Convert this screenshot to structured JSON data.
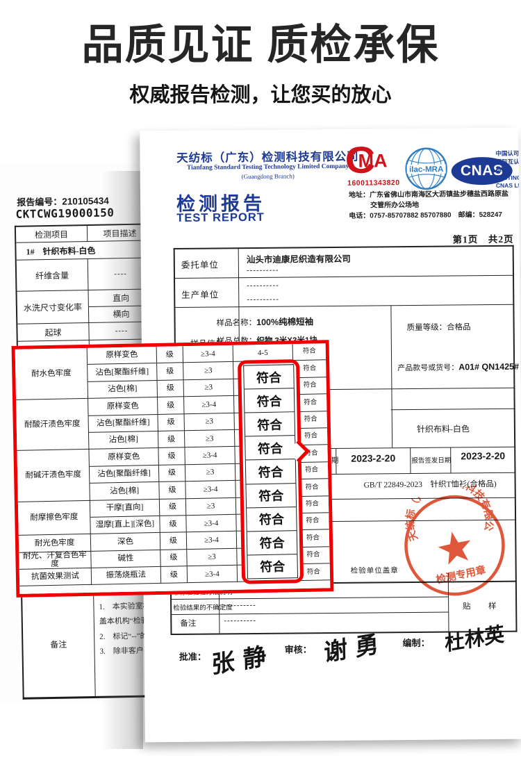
{
  "hero": {
    "title": "品质见证 质检承保",
    "subtitle": "权威报告检测，让您买的放心"
  },
  "left_doc": {
    "report_no_label": "报告编号：",
    "report_no": "210105434",
    "report_code": "CKTCWG19000150",
    "table": {
      "h1": "检测项目",
      "h2": "项目描述",
      "item_row": "1#　针织布料-白色",
      "r1": {
        "label": "纤维含量",
        "value": "----"
      },
      "r2": {
        "label": "水洗尺寸变化率",
        "a": "直向",
        "b": "横向"
      },
      "r3": {
        "label": "起球",
        "value": "----"
      },
      "r4": {
        "label": "顶破强力",
        "value": "----"
      }
    },
    "notes": {
      "label": "备注",
      "l1": "1.　本实验室根据",
      "l2": "盖本机构“检验检",
      "l3": "2.　标记“--”的测",
      "l4": "3.　除非客户要求"
    }
  },
  "right_doc": {
    "company_cn": "天纺标（广东）检测科技有限公司",
    "company_en": "Tianfang Standard Testing Technology Limited Company",
    "company_branch": "(Guangdong Branch)",
    "title_cn": "检测报告",
    "title_en": "TEST REPORT",
    "cma_c": "C",
    "cma_ma": "MA",
    "cma_no": "160011343820",
    "ilac": "ilac-MRA",
    "cnas": "CNAS",
    "accred": {
      "l1": "中国认可",
      "l2": "国际互认",
      "l3": "检测",
      "l4": "TESTING",
      "l5": "CNAS L9"
    },
    "addr1": "地址：广东省佛山市南海区大沥镇盐步穗盐西路原盐",
    "addr2": "交管所办公场地",
    "addr3": "电话：0757-85707882 85707880　邮编：528247",
    "page_no": "第1页　共2页",
    "client_label": "委托单位",
    "client": "汕头市迪康尼织造有限公司",
    "dashes": "----------",
    "producer_label": "生产单位",
    "sample": {
      "label": "样品信息",
      "name_l": "样品名称：",
      "name": "100%纯棉短袖",
      "qty_l": "样品总数：",
      "qty": "织物 3米X3米1块",
      "grade_l": "质量等级：",
      "grade": "合格品"
    },
    "product_no_l": "产品款号或货号：",
    "product_no": "A01# QN1425#",
    "fabric": "针织布料-白色",
    "date_frag": "日期",
    "date1": "2023-2-20",
    "sign_date_l": "报告签发日期",
    "date2": "2023-2-20",
    "standard": "GB/T 22849-2023　针织T恤衫(合格品)",
    "seal_label": "检验单位盖章",
    "brow1": "非标准检验方法说明",
    "brow2": "检验结果的不确定度",
    "brow3": "备注",
    "paste": "贴　样",
    "sig": {
      "a_l": "批准：",
      "a": "张 静",
      "b_l": "审核：",
      "b": "谢 勇",
      "c_l": "编制：",
      "c": "杜林英"
    },
    "stamp": {
      "ring": "天纺标（广东）检测科技有限公司",
      "sub": "检测专用章"
    }
  },
  "result_table": {
    "rows": [
      {
        "group": "耐水色牢度",
        "span": 3,
        "sub": "原样变色",
        "unit": "级",
        "req": "≥3-4",
        "result": "4-5",
        "verdict": "符合"
      },
      {
        "sub": "沾色[聚酯纤维]",
        "unit": "级",
        "req": "≥3",
        "verdict": "符合"
      },
      {
        "sub": "沾色[棉]",
        "unit": "级",
        "req": "≥3",
        "verdict": "符合"
      },
      {
        "group": "耐酸汗渍色牢度",
        "span": 3,
        "sub": "原样变色",
        "unit": "级",
        "req": "≥3-4",
        "verdict": "符合"
      },
      {
        "sub": "沾色[聚酯纤维]",
        "unit": "级",
        "req": "≥3",
        "verdict": "符合"
      },
      {
        "sub": "沾色[棉]",
        "unit": "级",
        "req": "≥3",
        "verdict": "符合"
      },
      {
        "group": "耐碱汗渍色牢度",
        "span": 3,
        "sub": "原样变色",
        "unit": "级",
        "req": "≥3-4",
        "verdict": "符合"
      },
      {
        "sub": "沾色[聚酯纤维]",
        "unit": "级",
        "req": "≥3",
        "verdict": "符合"
      },
      {
        "sub": "沾色[棉]",
        "unit": "级",
        "req": "≥3-4",
        "verdict": "符合"
      },
      {
        "group": "耐摩擦色牢度",
        "span": 2,
        "sub": "干摩[直向]",
        "unit": "级",
        "req": "≥3",
        "verdict": "符合"
      },
      {
        "sub": "湿摩[直上][深色]",
        "unit": "级",
        "req": "≥3-4",
        "verdict": "符合"
      },
      {
        "group": "耐光色牢度",
        "span": 1,
        "sub": "深色",
        "unit": "级",
        "req": "≥3-4",
        "verdict": "符合"
      },
      {
        "group": "耐光、汗复合色牢度",
        "span": 1,
        "sub": "碱性",
        "unit": "级",
        "req": "≥3",
        "verdict": "符合"
      },
      {
        "group": "抗菌效果测试",
        "span": 1,
        "sub": "振荡烧瓶法",
        "unit": "级",
        "req": "≥3-4",
        "verdict": "符合"
      }
    ],
    "callout": [
      "符合",
      "符合",
      "符合",
      "符合",
      "符合",
      "符合",
      "符合",
      "符合",
      "符合"
    ]
  },
  "colors": {
    "annotation_red": "#ee0000",
    "navy": "#1d3a94",
    "cma_red": "#d0121b",
    "ilac_blue": "#2e7ec2",
    "stamp_red": "#dd4a2b"
  }
}
